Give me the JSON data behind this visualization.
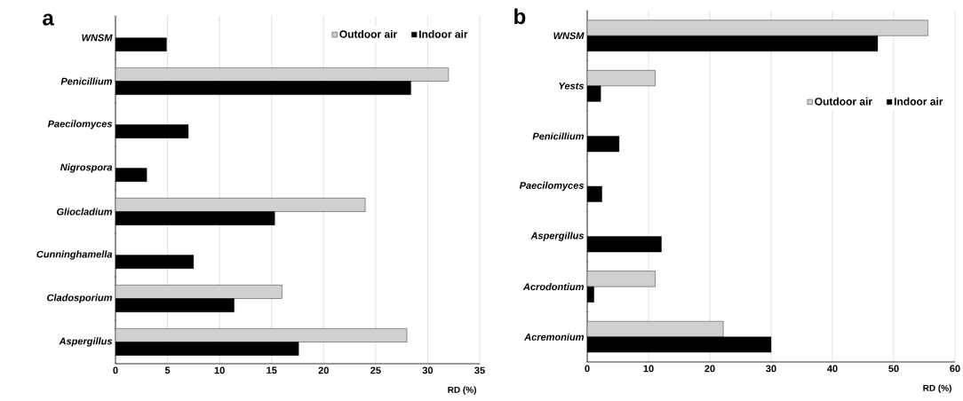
{
  "chart_data": [
    {
      "type": "bar",
      "orientation": "horizontal",
      "title": "a",
      "xlabel": "RD (%)",
      "categories": [
        "WNSM",
        "Penicillium",
        "Paecilomyces",
        "Nigrospora",
        "Gliocladium",
        "Cunninghamella",
        "Cladosporium",
        "Aspergillus"
      ],
      "series": [
        {
          "name": "Outdoor air",
          "color": "#d0d0d0",
          "values": [
            null,
            32,
            null,
            null,
            24,
            null,
            16,
            28
          ]
        },
        {
          "name": "Indoor air",
          "color": "#000000",
          "values": [
            4.9,
            28.4,
            7,
            3,
            15.3,
            7.5,
            11.4,
            17.6
          ]
        }
      ],
      "xlim": [
        0,
        35
      ],
      "xticks": [
        0,
        5,
        10,
        15,
        20,
        25,
        30,
        35
      ],
      "grid": "x",
      "legend": "top right"
    },
    {
      "type": "bar",
      "orientation": "horizontal",
      "title": "b",
      "xlabel": "RD (%)",
      "categories": [
        "WNSM",
        "Yests",
        "Penicillium",
        "Paecilomyces",
        "Aspergillus",
        "Acrodontium",
        "Acremonium"
      ],
      "series": [
        {
          "name": "Outdoor air",
          "color": "#d0d0d0",
          "values": [
            55.6,
            11.1,
            null,
            null,
            null,
            11.1,
            22.2
          ]
        },
        {
          "name": "Indoor air",
          "color": "#000000",
          "values": [
            47.4,
            2.2,
            5.2,
            2.4,
            12.1,
            1.1,
            30
          ]
        }
      ],
      "xlim": [
        0,
        60
      ],
      "xticks": [
        0,
        10,
        20,
        30,
        40,
        50,
        60
      ],
      "grid": "x",
      "legend": "right"
    }
  ]
}
